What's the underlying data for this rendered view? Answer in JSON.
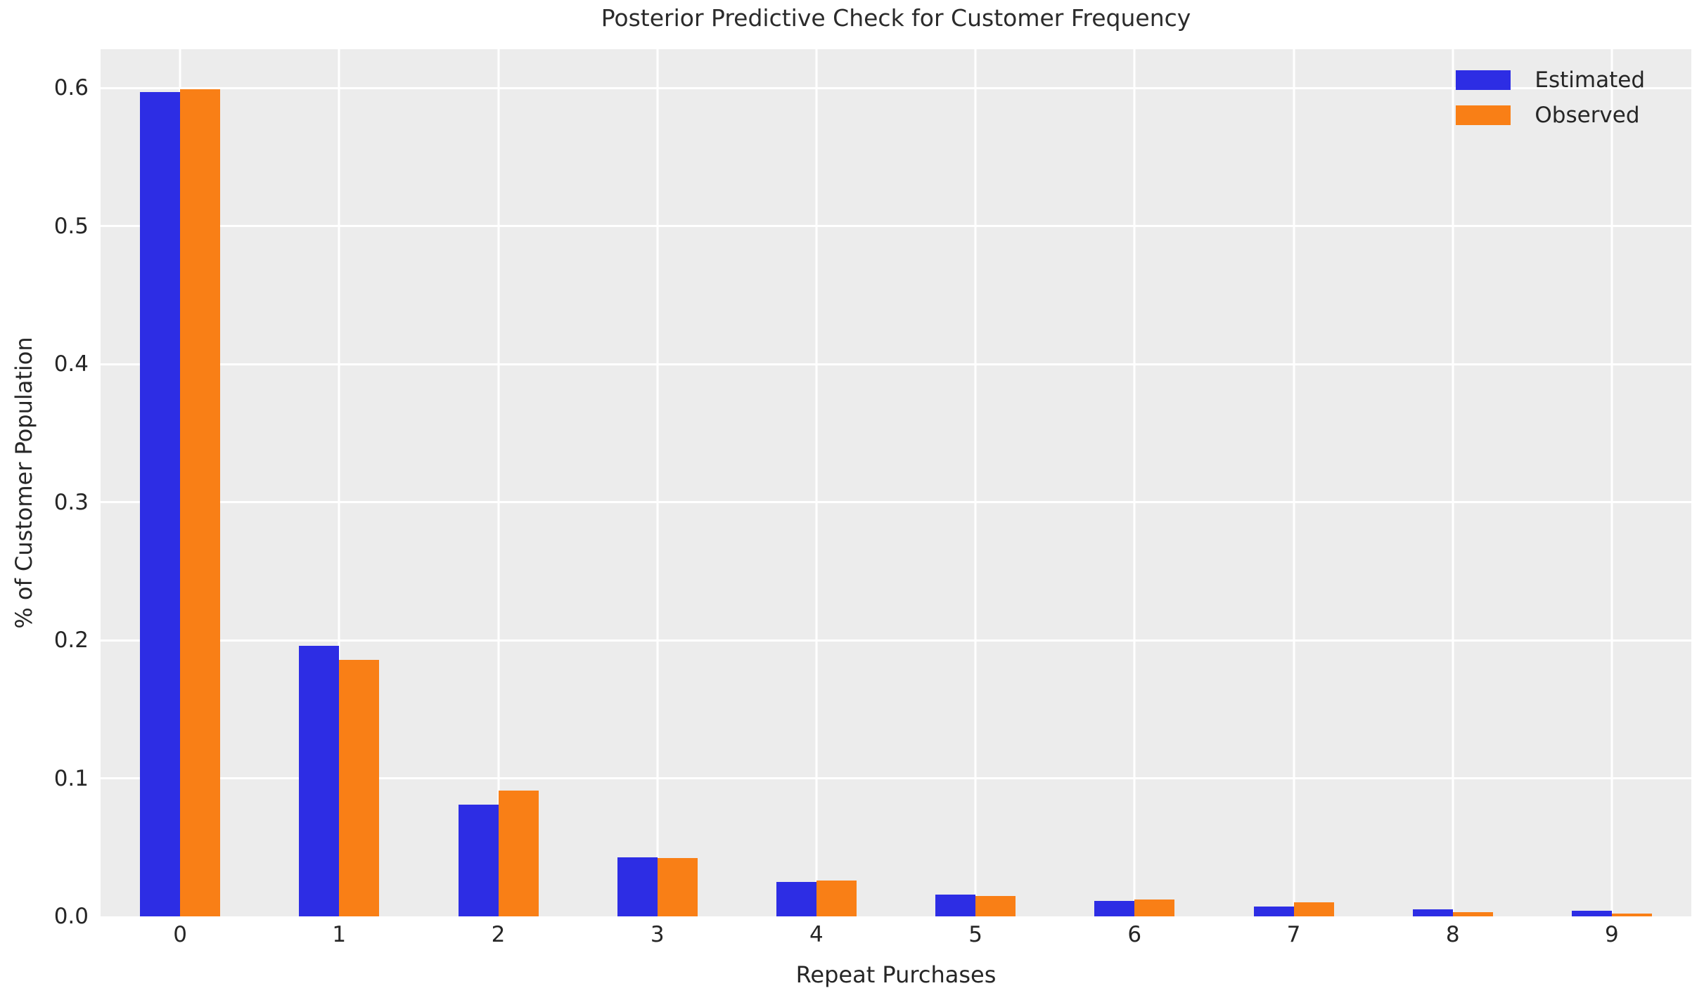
{
  "chart_data": {
    "type": "bar",
    "title": "Posterior Predictive Check for Customer Frequency",
    "xlabel": "Repeat Purchases",
    "ylabel": "% of Customer Population",
    "categories": [
      "0",
      "1",
      "2",
      "3",
      "4",
      "5",
      "6",
      "7",
      "8",
      "9"
    ],
    "series": [
      {
        "name": "Estimated",
        "color": "#2d2de4",
        "values": [
          0.597,
          0.196,
          0.081,
          0.043,
          0.025,
          0.016,
          0.011,
          0.007,
          0.005,
          0.004
        ]
      },
      {
        "name": "Observed",
        "color": "#f97f16",
        "values": [
          0.599,
          0.186,
          0.091,
          0.042,
          0.026,
          0.015,
          0.012,
          0.01,
          0.003,
          0.002
        ]
      }
    ],
    "yticks": [
      "0.0",
      "0.1",
      "0.2",
      "0.3",
      "0.4",
      "0.5",
      "0.6"
    ],
    "ytick_values": [
      0.0,
      0.1,
      0.2,
      0.3,
      0.4,
      0.5,
      0.6
    ],
    "ylim": [
      0,
      0.628
    ],
    "grid": true,
    "legend_position": "upper right",
    "plot_background": "#ececec",
    "text_color": "#262626"
  }
}
